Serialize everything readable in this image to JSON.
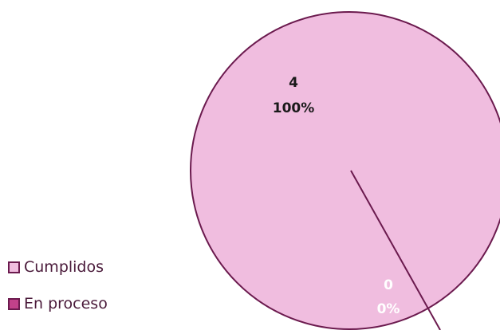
{
  "chart_data": {
    "type": "pie",
    "categories": [
      "Cumplidos",
      "En proceso"
    ],
    "values": [
      4,
      0
    ],
    "data_labels": [
      {
        "value": "4",
        "percent": "100%"
      },
      {
        "value": "0",
        "percent": "0%"
      }
    ],
    "colors": [
      "#f0bddf",
      "#c2418a"
    ],
    "border_color": "#6b1a4e",
    "legend": {
      "position": "bottom-left",
      "entries": [
        "Cumplidos",
        "En proceso"
      ]
    }
  }
}
